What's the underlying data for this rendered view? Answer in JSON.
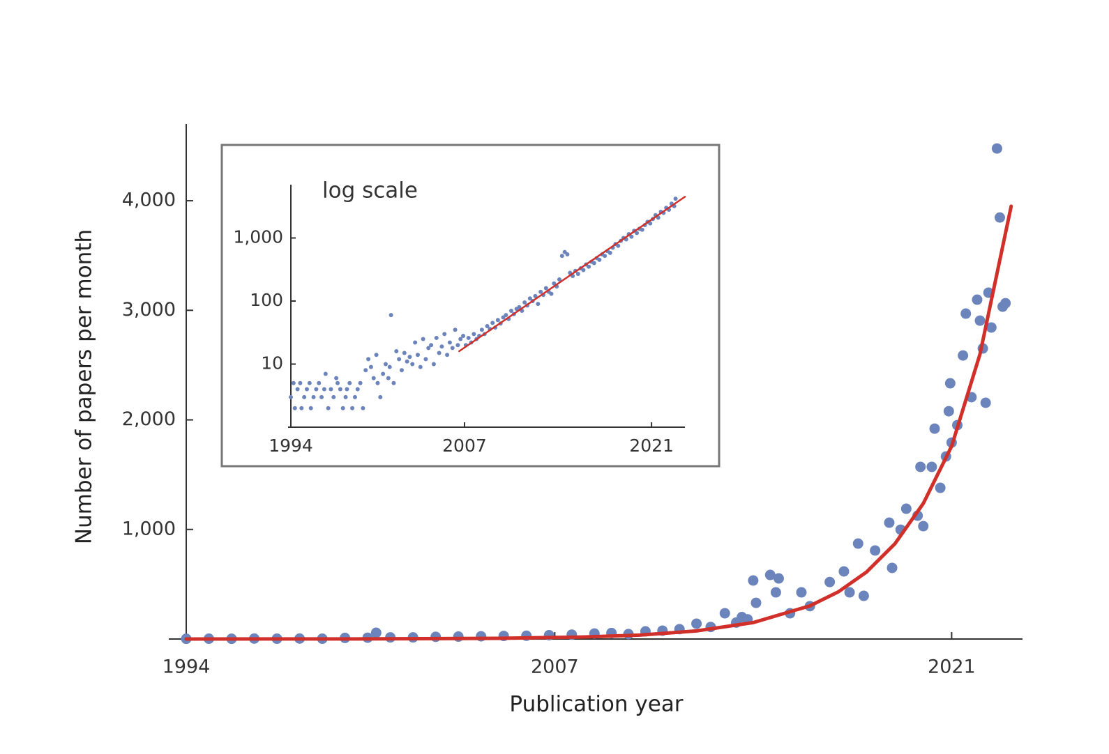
{
  "chart_data": [
    {
      "type": "scatter",
      "y_label": "Number of papers per month",
      "x_label": "Publication year",
      "xlim": [
        1994,
        2023.5
      ],
      "ylim": [
        0,
        4700
      ],
      "xticks": [
        1994,
        2007,
        2021
      ],
      "yticks": [
        {
          "value": 1000,
          "label": "1,000"
        },
        {
          "value": 2000,
          "label": "2,000"
        },
        {
          "value": 3000,
          "label": "3,000"
        },
        {
          "value": 4000,
          "label": "4,000"
        }
      ],
      "series": [
        {
          "type": "scatter",
          "color": "#6b84bb",
          "x": [
            1994.0,
            1994.8,
            1995.6,
            1996.4,
            1997.2,
            1998.0,
            1998.8,
            1999.6,
            2000.4,
            2000.7,
            2001.2,
            2002.0,
            2002.8,
            2003.6,
            2004.4,
            2005.2,
            2006.0,
            2006.8,
            2007.6,
            2008.4,
            2009.0,
            2009.6,
            2010.2,
            2010.8,
            2011.4,
            2012.0,
            2012.5,
            2013.0,
            2013.4,
            2013.6,
            2013.8,
            2014.0,
            2014.1,
            2014.6,
            2014.8,
            2014.9,
            2015.3,
            2015.7,
            2016.0,
            2016.7,
            2017.2,
            2017.4,
            2017.7,
            2017.9,
            2018.3,
            2018.8,
            2018.9,
            2019.2,
            2019.4,
            2019.8,
            2019.9,
            2020.0,
            2020.3,
            2020.4,
            2020.6,
            2020.8,
            2020.9,
            2020.95,
            2021.0,
            2021.2,
            2021.4,
            2021.5,
            2021.7,
            2021.9,
            2022.0,
            2022.1,
            2022.2,
            2022.3,
            2022.4,
            2022.6,
            2022.7,
            2022.8,
            2022.9
          ],
          "values": [
            2,
            3,
            2,
            4,
            3,
            4,
            3,
            10,
            12,
            57,
            15,
            15,
            20,
            22,
            25,
            28,
            30,
            35,
            40,
            50,
            55,
            45,
            70,
            76,
            90,
            140,
            110,
            235,
            150,
            200,
            180,
            534,
            330,
            585,
            426,
            553,
            235,
            426,
            300,
            520,
            617,
            426,
            871,
            394,
            808,
            1062,
            649,
            998,
            1189,
            1126,
            1571,
            1030,
            1571,
            1920,
            1380,
            1666,
            2079,
            2334,
            1793,
            1952,
            2588,
            2970,
            2207,
            3097,
            2906,
            2652,
            2156,
            3161,
            2843,
            4477,
            3847,
            3033,
            3065
          ]
        },
        {
          "type": "line",
          "color": "#d1302a",
          "x": [
            1994,
            2000,
            2005,
            2008,
            2010,
            2012,
            2014,
            2016,
            2017,
            2018,
            2019,
            2020,
            2021,
            2022,
            2023.1
          ],
          "values": [
            0.1,
            1.1,
            6.3,
            18,
            36,
            74,
            150,
            303,
            430,
            612,
            870,
            1237,
            1760,
            2600,
            3950
          ]
        }
      ]
    },
    {
      "type": "scatter",
      "annotation": "log scale",
      "yscale": "log",
      "xlim": [
        1994,
        2023.5
      ],
      "ylim": [
        1,
        7000
      ],
      "xticks": [
        1994,
        2007,
        2021
      ],
      "yticks": [
        10,
        100,
        {
          "value": 1000,
          "label": "1,000"
        }
      ],
      "series": [
        {
          "type": "scatter",
          "color": "#6b84bb",
          "x": [
            1994.0,
            1994.2,
            1994.3,
            1994.5,
            1994.7,
            1994.8,
            1995.0,
            1995.2,
            1995.4,
            1995.5,
            1995.7,
            1995.9,
            1996.1,
            1996.3,
            1996.5,
            1996.6,
            1996.8,
            1997.0,
            1997.2,
            1997.4,
            1997.5,
            1997.7,
            1997.9,
            1998.1,
            1998.2,
            1998.4,
            1998.6,
            1998.8,
            1999.0,
            1999.2,
            1999.4,
            1999.6,
            1999.8,
            2000.0,
            2000.2,
            2000.4,
            2000.5,
            2000.7,
            2000.9,
            2001.1,
            2001.3,
            2001.4,
            2001.5,
            2001.7,
            2001.9,
            2002.1,
            2002.3,
            2002.5,
            2002.7,
            2002.9,
            2003.1,
            2003.3,
            2003.5,
            2003.7,
            2003.9,
            2004.1,
            2004.3,
            2004.5,
            2004.7,
            2004.9,
            2005.1,
            2005.3,
            2005.5,
            2005.7,
            2005.9,
            2006.1,
            2006.3,
            2006.5,
            2006.7,
            2006.9,
            2007.1,
            2007.3,
            2007.5,
            2007.7,
            2007.9,
            2008.1,
            2008.3,
            2008.5,
            2008.7,
            2008.9,
            2009.1,
            2009.3,
            2009.5,
            2009.7,
            2009.9,
            2010.1,
            2010.3,
            2010.5,
            2010.7,
            2010.9,
            2011.1,
            2011.3,
            2011.5,
            2011.7,
            2011.9,
            2012.1,
            2012.3,
            2012.5,
            2012.7,
            2012.9,
            2013.1,
            2013.3,
            2013.5,
            2013.7,
            2013.9,
            2014.1,
            2014.3,
            2014.5,
            2014.7,
            2014.9,
            2015.1,
            2015.3,
            2015.5,
            2015.7,
            2015.9,
            2016.1,
            2016.3,
            2016.5,
            2016.7,
            2016.9,
            2017.1,
            2017.3,
            2017.5,
            2017.7,
            2017.9,
            2018.1,
            2018.3,
            2018.5,
            2018.7,
            2018.9,
            2019.1,
            2019.3,
            2019.5,
            2019.7,
            2019.9,
            2020.1,
            2020.3,
            2020.5,
            2020.7,
            2020.9,
            2021.1,
            2021.3,
            2021.5,
            2021.7,
            2021.9,
            2022.1,
            2022.3,
            2022.5,
            2022.7,
            2022.8
          ],
          "values": [
            3,
            5,
            2,
            4,
            5,
            2,
            3,
            4,
            5,
            2,
            3,
            4,
            5,
            3,
            4,
            7,
            2,
            4,
            3,
            6,
            5,
            4,
            2,
            3,
            4,
            5,
            2,
            3,
            4,
            5,
            2,
            8,
            12,
            9,
            6,
            14,
            5,
            3,
            7,
            10,
            6,
            9,
            60,
            5,
            16,
            12,
            8,
            15,
            11,
            13,
            10,
            22,
            14,
            9,
            25,
            12,
            18,
            20,
            10,
            26,
            15,
            19,
            30,
            14,
            22,
            18,
            35,
            20,
            25,
            28,
            20,
            26,
            22,
            30,
            25,
            28,
            35,
            30,
            40,
            36,
            45,
            38,
            50,
            44,
            55,
            60,
            52,
            70,
            62,
            75,
            80,
            70,
            95,
            85,
            110,
            100,
            120,
            90,
            140,
            125,
            160,
            140,
            130,
            190,
            170,
            220,
            520,
            600,
            550,
            280,
            250,
            300,
            270,
            330,
            310,
            380,
            350,
            420,
            400,
            480,
            450,
            550,
            520,
            620,
            580,
            700,
            800,
            750,
            900,
            1000,
            950,
            1150,
            1050,
            1300,
            1200,
            1400,
            1350,
            1600,
            1800,
            1700,
            2000,
            2300,
            2100,
            2600,
            2500,
            3000,
            2800,
            3500,
            3200,
            4200
          ]
        },
        {
          "type": "line",
          "color": "#d1302a",
          "x": [
            2006.6,
            2023.5
          ],
          "values": [
            16,
            4500
          ]
        }
      ]
    }
  ]
}
